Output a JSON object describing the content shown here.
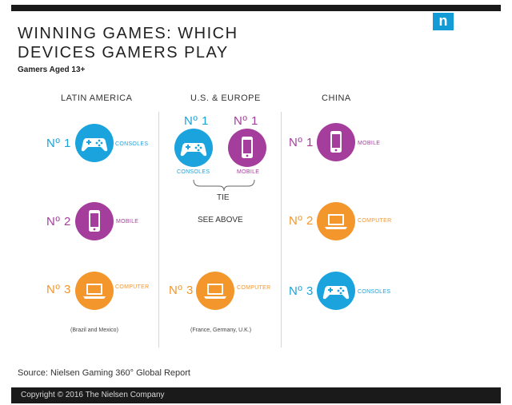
{
  "logo": {
    "text": "n"
  },
  "header": {
    "title_line1": "WINNING GAMES: WHICH",
    "title_line2": "DEVICES GAMERS PLAY",
    "subtitle": "Gamers Aged 13+"
  },
  "colors": {
    "consoles": "#1aa3dc",
    "mobile": "#a43d9c",
    "computer": "#f3962b"
  },
  "latin_america": {
    "heading": "LATIN AMERICA",
    "rank1": {
      "rank": "Nº 1",
      "device": "CONSOLES",
      "icon": "gamepad-icon"
    },
    "rank2": {
      "rank": "Nº 2",
      "device": "MOBILE",
      "icon": "phone-icon"
    },
    "rank3": {
      "rank": "Nº 3",
      "device": "COMPUTER",
      "icon": "laptop-icon"
    },
    "note": "(Brazil and Mexico)"
  },
  "us_europe": {
    "heading": "U.S. & EUROPE",
    "rank1a": {
      "rank": "Nº 1",
      "device": "CONSOLES",
      "icon": "gamepad-icon"
    },
    "rank1b": {
      "rank": "Nº 1",
      "device": "MOBILE",
      "icon": "phone-icon"
    },
    "tie": "TIE",
    "rank2_text": "SEE ABOVE",
    "rank3": {
      "rank": "Nº 3",
      "device": "COMPUTER",
      "icon": "laptop-icon"
    },
    "note": "(France, Germany, U.K.)"
  },
  "china": {
    "heading": "CHINA",
    "rank1": {
      "rank": "Nº 1",
      "device": "MOBILE",
      "icon": "phone-icon"
    },
    "rank2": {
      "rank": "Nº 2",
      "device": "COMPUTER",
      "icon": "laptop-icon"
    },
    "rank3": {
      "rank": "Nº 3",
      "device": "CONSOLES",
      "icon": "gamepad-icon"
    }
  },
  "footer": {
    "source": "Source: Nielsen Gaming 360° Global Report",
    "copyright": "Copyright © 2016 The Nielsen Company"
  }
}
